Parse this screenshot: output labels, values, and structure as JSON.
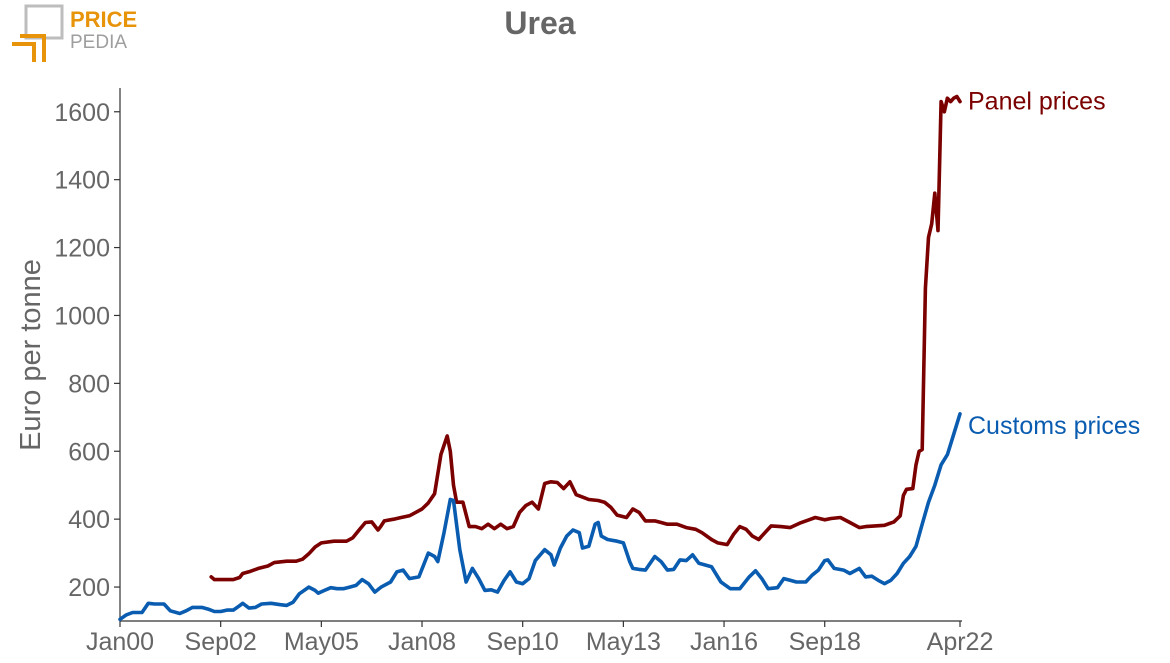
{
  "logo": {
    "line1": "PRICE",
    "line2": "PEDIA",
    "accent_color": "#E8940A",
    "gray_color": "#9E9E9E"
  },
  "chart_data": {
    "type": "line",
    "title": "Urea",
    "ylabel": "Euro per tonne",
    "xlabel": "",
    "ylim": [
      100,
      1670
    ],
    "yticks": [
      200,
      400,
      600,
      800,
      1000,
      1200,
      1400,
      1600
    ],
    "xticks": [
      "Jan00",
      "Sep02",
      "May05",
      "Jan08",
      "Sep10",
      "May13",
      "Jan16",
      "Sep18",
      "Apr22"
    ],
    "xrange": [
      "Jan00",
      "Apr22"
    ],
    "grid": false,
    "series": [
      {
        "name": "Panel prices",
        "color": "#7B0000",
        "points": [
          [
            "Jun02",
            230
          ],
          [
            "Jul02",
            222
          ],
          [
            "Sep02",
            222
          ],
          [
            "Jan03",
            222
          ],
          [
            "Mar03",
            228
          ],
          [
            "Apr03",
            240
          ],
          [
            "Jun03",
            245
          ],
          [
            "Sep03",
            255
          ],
          [
            "Dec03",
            262
          ],
          [
            "Feb04",
            272
          ],
          [
            "Jun04",
            276
          ],
          [
            "Sep04",
            276
          ],
          [
            "Nov04",
            282
          ],
          [
            "Jan05",
            298
          ],
          [
            "Mar05",
            318
          ],
          [
            "May05",
            330
          ],
          [
            "Sep05",
            335
          ],
          [
            "Jan06",
            335
          ],
          [
            "Mar06",
            345
          ],
          [
            "May06",
            368
          ],
          [
            "Jul06",
            390
          ],
          [
            "Sep06",
            392
          ],
          [
            "Nov06",
            368
          ],
          [
            "Dec06",
            380
          ],
          [
            "Jan07",
            395
          ],
          [
            "Apr07",
            400
          ],
          [
            "Jun07",
            404
          ],
          [
            "Sep07",
            410
          ],
          [
            "Nov07",
            420
          ],
          [
            "Jan08",
            430
          ],
          [
            "Mar08",
            448
          ],
          [
            "May08",
            475
          ],
          [
            "Jul08",
            590
          ],
          [
            "Sep08",
            645
          ],
          [
            "Oct08",
            600
          ],
          [
            "Nov08",
            500
          ],
          [
            "Dec08",
            450
          ],
          [
            "Feb09",
            450
          ],
          [
            "Apr09",
            378
          ],
          [
            "Jun09",
            378
          ],
          [
            "Aug09",
            372
          ],
          [
            "Oct09",
            385
          ],
          [
            "Dec09",
            372
          ],
          [
            "Feb10",
            385
          ],
          [
            "Apr10",
            372
          ],
          [
            "Jun10",
            378
          ],
          [
            "Aug10",
            420
          ],
          [
            "Oct10",
            440
          ],
          [
            "Dec10",
            450
          ],
          [
            "Feb11",
            430
          ],
          [
            "Apr11",
            505
          ],
          [
            "Jun11",
            510
          ],
          [
            "Aug11",
            508
          ],
          [
            "Oct11",
            490
          ],
          [
            "Dec11",
            510
          ],
          [
            "Feb12",
            472
          ],
          [
            "Apr12",
            465
          ],
          [
            "Jun12",
            458
          ],
          [
            "Sep12",
            455
          ],
          [
            "Nov12",
            450
          ],
          [
            "Jan13",
            435
          ],
          [
            "Mar13",
            412
          ],
          [
            "Jun13",
            405
          ],
          [
            "Aug13",
            430
          ],
          [
            "Oct13",
            420
          ],
          [
            "Dec13",
            395
          ],
          [
            "Mar14",
            395
          ],
          [
            "May14",
            390
          ],
          [
            "Jul14",
            385
          ],
          [
            "Oct14",
            385
          ],
          [
            "Jan15",
            375
          ],
          [
            "Apr15",
            370
          ],
          [
            "Jun15",
            360
          ],
          [
            "Sep15",
            340
          ],
          [
            "Nov15",
            330
          ],
          [
            "Feb16",
            325
          ],
          [
            "Apr16",
            355
          ],
          [
            "Jun16",
            378
          ],
          [
            "Aug16",
            370
          ],
          [
            "Oct16",
            350
          ],
          [
            "Dec16",
            340
          ],
          [
            "Feb17",
            360
          ],
          [
            "Apr17",
            380
          ],
          [
            "Jul17",
            378
          ],
          [
            "Oct17",
            375
          ],
          [
            "Jan18",
            388
          ],
          [
            "Apr18",
            398
          ],
          [
            "Jun18",
            405
          ],
          [
            "Sep18",
            398
          ],
          [
            "Nov18",
            402
          ],
          [
            "Feb19",
            405
          ],
          [
            "May19",
            390
          ],
          [
            "Aug19",
            375
          ],
          [
            "Oct19",
            378
          ],
          [
            "Jan20",
            380
          ],
          [
            "Apr20",
            382
          ],
          [
            "Jul20",
            392
          ],
          [
            "Sep20",
            410
          ],
          [
            "Oct20",
            470
          ],
          [
            "Nov20",
            488
          ],
          [
            "Jan21",
            490
          ],
          [
            "Feb21",
            560
          ],
          [
            "Mar21",
            600
          ],
          [
            "Apr21",
            605
          ],
          [
            "May21",
            1080
          ],
          [
            "Jun21",
            1230
          ],
          [
            "Jul21",
            1270
          ],
          [
            "Aug21",
            1360
          ],
          [
            "Sep21",
            1250
          ],
          [
            "Oct21",
            1630
          ],
          [
            "Nov21",
            1600
          ],
          [
            "Dec21",
            1640
          ],
          [
            "Jan22",
            1630
          ],
          [
            "Feb22",
            1640
          ],
          [
            "Mar22",
            1645
          ],
          [
            "Apr22",
            1630
          ]
        ]
      },
      {
        "name": "Customs prices",
        "color": "#0A5CB0",
        "points": [
          [
            "Jan00",
            105
          ],
          [
            "Mar00",
            118
          ],
          [
            "May00",
            125
          ],
          [
            "Aug00",
            125
          ],
          [
            "Oct00",
            152
          ],
          [
            "Dec00",
            150
          ],
          [
            "Mar01",
            150
          ],
          [
            "May01",
            130
          ],
          [
            "Aug01",
            122
          ],
          [
            "Oct01",
            130
          ],
          [
            "Dec01",
            140
          ],
          [
            "Mar02",
            140
          ],
          [
            "May02",
            135
          ],
          [
            "Jul02",
            128
          ],
          [
            "Sep02",
            128
          ],
          [
            "Nov02",
            132
          ],
          [
            "Jan03",
            132
          ],
          [
            "Mar03",
            145
          ],
          [
            "Apr03",
            152
          ],
          [
            "Jun03",
            138
          ],
          [
            "Aug03",
            140
          ],
          [
            "Oct03",
            150
          ],
          [
            "Jan04",
            152
          ],
          [
            "Apr04",
            148
          ],
          [
            "Jun04",
            146
          ],
          [
            "Aug04",
            155
          ],
          [
            "Oct04",
            180
          ],
          [
            "Jan05",
            200
          ],
          [
            "Mar05",
            190
          ],
          [
            "Apr05",
            182
          ],
          [
            "Jun05",
            190
          ],
          [
            "Aug05",
            198
          ],
          [
            "Oct05",
            195
          ],
          [
            "Dec05",
            195
          ],
          [
            "Feb06",
            200
          ],
          [
            "Apr06",
            205
          ],
          [
            "Jun06",
            222
          ],
          [
            "Aug06",
            210
          ],
          [
            "Oct06",
            185
          ],
          [
            "Dec06",
            200
          ],
          [
            "Mar07",
            215
          ],
          [
            "May07",
            245
          ],
          [
            "Jul07",
            250
          ],
          [
            "Sep07",
            225
          ],
          [
            "Dec07",
            230
          ],
          [
            "Mar08",
            300
          ],
          [
            "May08",
            290
          ],
          [
            "Jun08",
            275
          ],
          [
            "Aug08",
            360
          ],
          [
            "Oct08",
            458
          ],
          [
            "Nov08",
            455
          ],
          [
            "Jan09",
            310
          ],
          [
            "Mar09",
            215
          ],
          [
            "May09",
            255
          ],
          [
            "Jul09",
            225
          ],
          [
            "Sep09",
            190
          ],
          [
            "Nov09",
            192
          ],
          [
            "Jan10",
            185
          ],
          [
            "Mar10",
            218
          ],
          [
            "May10",
            245
          ],
          [
            "Jul10",
            215
          ],
          [
            "Sep10",
            210
          ],
          [
            "Nov10",
            225
          ],
          [
            "Jan11",
            278
          ],
          [
            "Apr11",
            310
          ],
          [
            "Jun11",
            295
          ],
          [
            "Jul11",
            265
          ],
          [
            "Sep11",
            315
          ],
          [
            "Nov11",
            350
          ],
          [
            "Jan12",
            368
          ],
          [
            "Mar12",
            360
          ],
          [
            "Apr12",
            315
          ],
          [
            "Jun12",
            320
          ],
          [
            "Aug12",
            385
          ],
          [
            "Sep12",
            390
          ],
          [
            "Oct12",
            350
          ],
          [
            "Dec12",
            340
          ],
          [
            "Mar13",
            335
          ],
          [
            "May13",
            330
          ],
          [
            "Jul13",
            275
          ],
          [
            "Aug13",
            255
          ],
          [
            "Oct13",
            252
          ],
          [
            "Dec13",
            250
          ],
          [
            "Mar14",
            290
          ],
          [
            "May14",
            275
          ],
          [
            "Jul14",
            250
          ],
          [
            "Sep14",
            252
          ],
          [
            "Nov14",
            280
          ],
          [
            "Jan15",
            278
          ],
          [
            "Mar15",
            295
          ],
          [
            "May15",
            270
          ],
          [
            "Jul15",
            265
          ],
          [
            "Sep15",
            260
          ],
          [
            "Dec15",
            215
          ],
          [
            "Mar16",
            195
          ],
          [
            "Jun16",
            195
          ],
          [
            "Sep16",
            230
          ],
          [
            "Nov16",
            248
          ],
          [
            "Jan17",
            225
          ],
          [
            "Mar17",
            195
          ],
          [
            "Jun17",
            198
          ],
          [
            "Aug17",
            225
          ],
          [
            "Oct17",
            220
          ],
          [
            "Dec17",
            215
          ],
          [
            "Mar18",
            215
          ],
          [
            "May18",
            235
          ],
          [
            "Jul18",
            250
          ],
          [
            "Sep18",
            278
          ],
          [
            "Oct18",
            280
          ],
          [
            "Dec18",
            255
          ],
          [
            "Mar19",
            250
          ],
          [
            "May19",
            240
          ],
          [
            "Aug19",
            255
          ],
          [
            "Oct19",
            230
          ],
          [
            "Dec19",
            232
          ],
          [
            "Feb20",
            220
          ],
          [
            "Apr20",
            210
          ],
          [
            "Jun20",
            220
          ],
          [
            "Aug20",
            240
          ],
          [
            "Oct20",
            270
          ],
          [
            "Dec20",
            290
          ],
          [
            "Feb21",
            320
          ],
          [
            "Apr21",
            385
          ],
          [
            "Jun21",
            450
          ],
          [
            "Aug21",
            500
          ],
          [
            "Oct21",
            560
          ],
          [
            "Dec21",
            590
          ],
          [
            "Feb22",
            650
          ],
          [
            "Apr22",
            710
          ]
        ]
      }
    ]
  }
}
